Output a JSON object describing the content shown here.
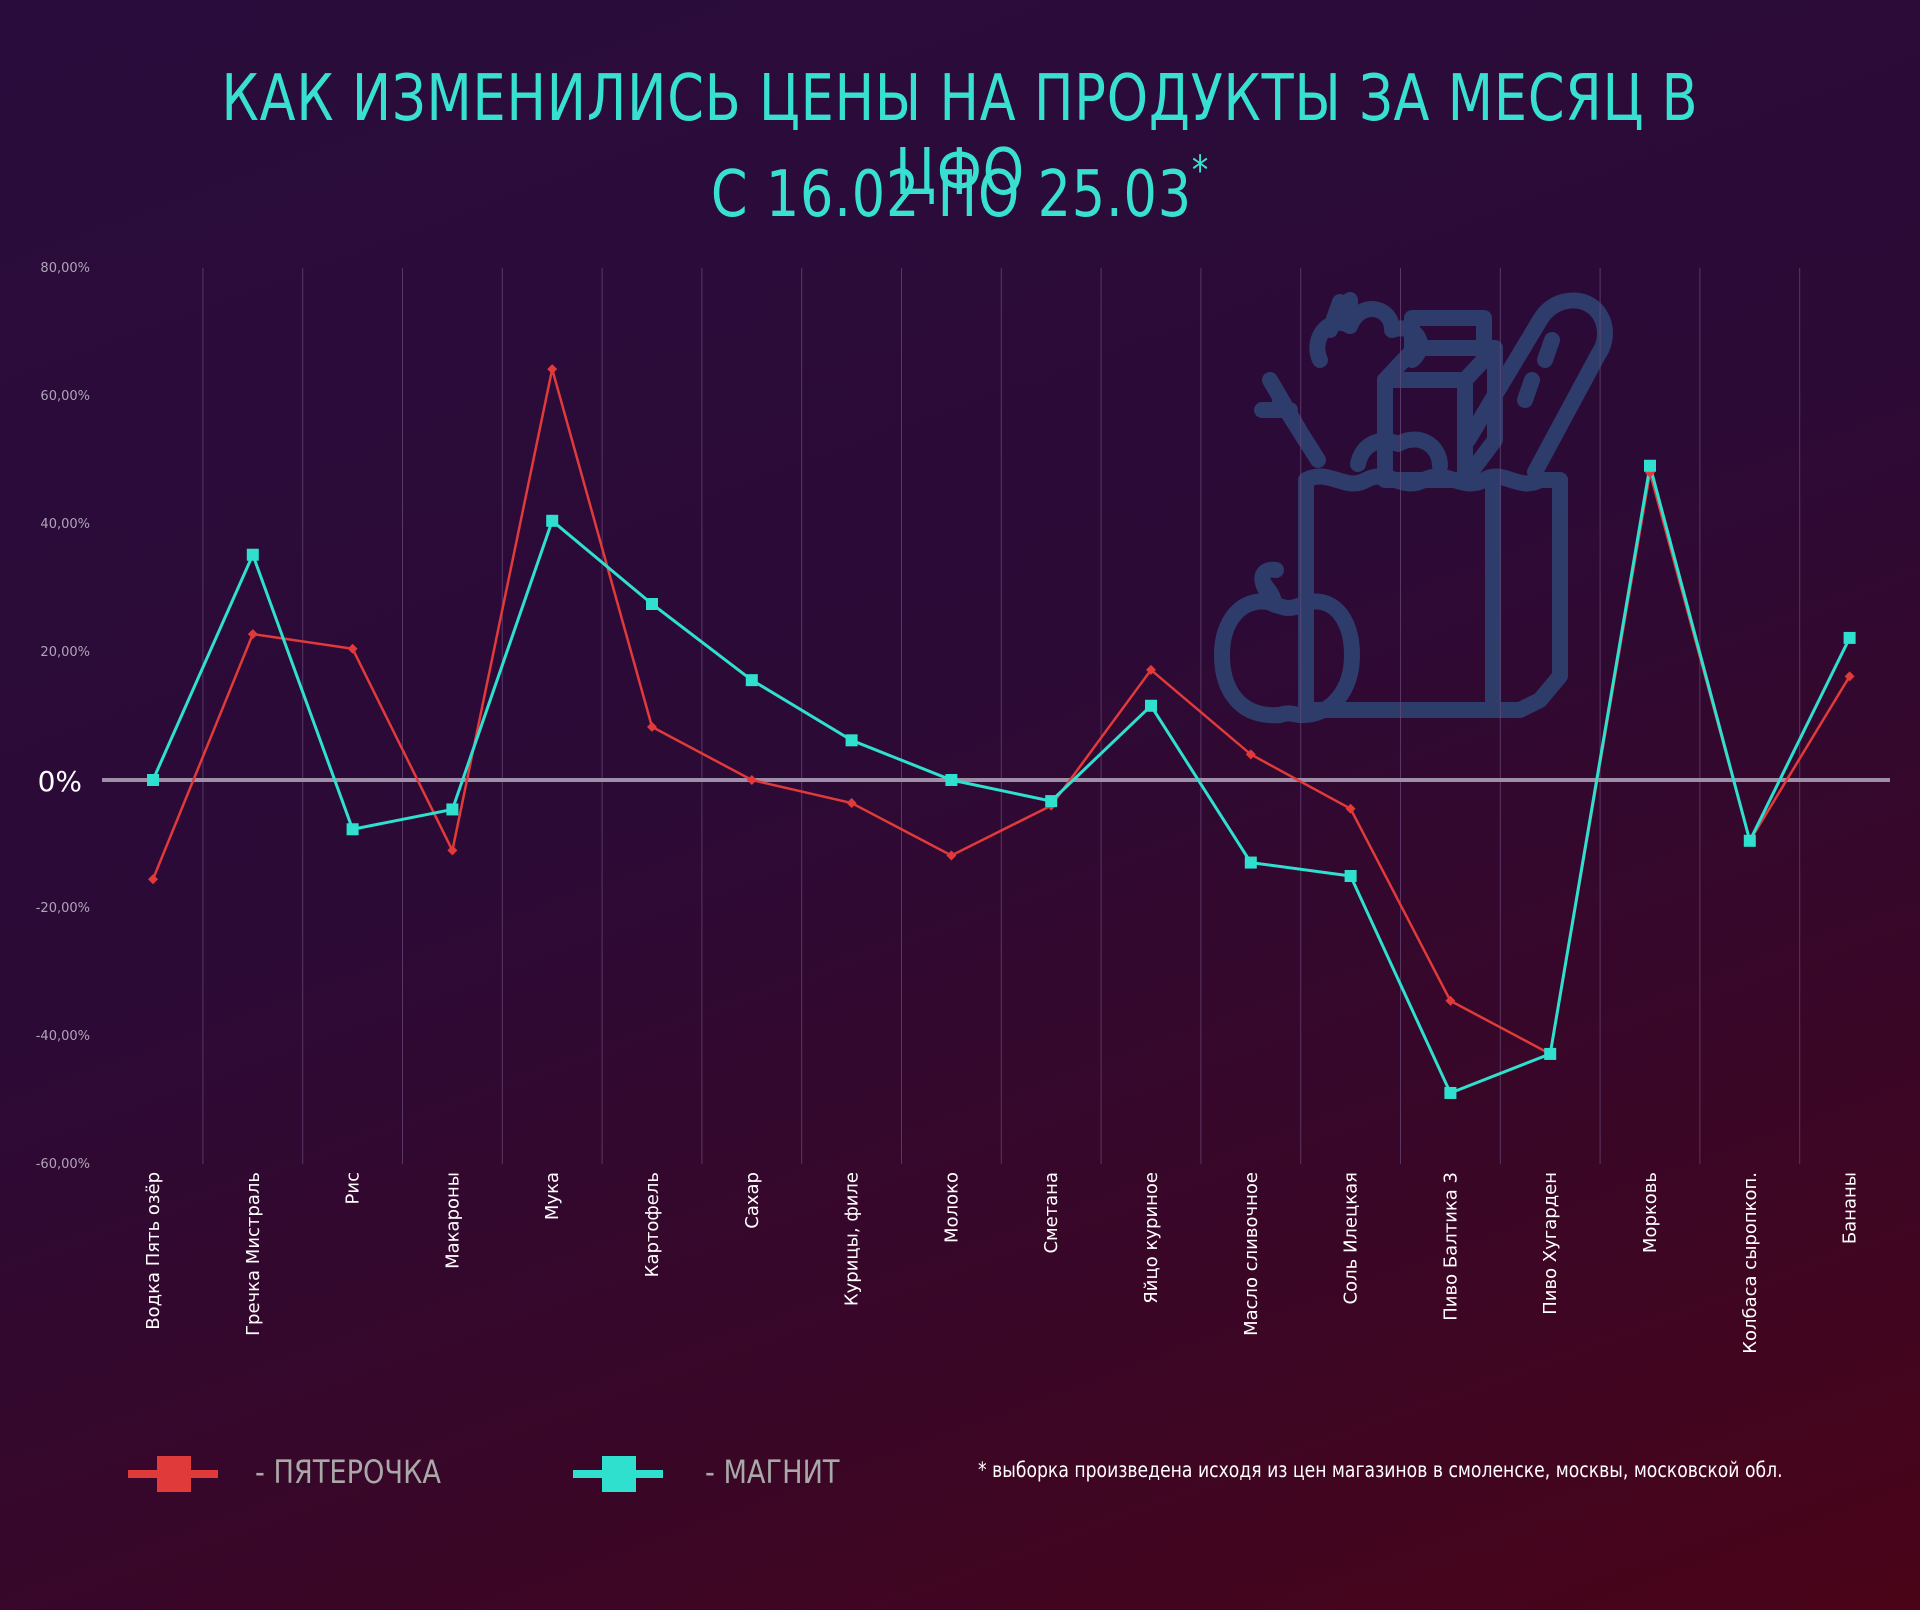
{
  "title": {
    "line1": "КАК ИЗМЕНИЛИСЬ ЦЕНЫ НА ПРОДУКТЫ ЗА МЕСЯЦ В ЦФО",
    "line2": "С 16.02 ПО 25.03",
    "mark": "*"
  },
  "zero_label": "0%",
  "footnote": "* выборка произведена исходя из цен магазинов в смоленске, москвы, московской обл.",
  "colors": {
    "pyaterochka": "#e03a3a",
    "magnit": "#2fe0cf",
    "title": "#37e0d0",
    "grid": "#6a4a7a",
    "zero_line": "#9e8ea8",
    "icon": "#2e3f6e"
  },
  "icon": "grocery-bag-icon",
  "chart_data": {
    "type": "line",
    "ylim": [
      -60,
      80
    ],
    "yticks": [
      "80,00%",
      "60,00%",
      "40,00%",
      "20,00%",
      "-20,00%",
      "-40,00%",
      "-60,00%"
    ],
    "ytick_values": [
      80,
      60,
      40,
      20,
      -20,
      -40,
      -60
    ],
    "categories": [
      "Водка Пять озёр",
      "Гречка Мистраль",
      "Рис",
      "Макароны",
      "Мука",
      "Картофель",
      "Сахар",
      "Курицы, филе",
      "Молоко",
      "Сметана",
      "Яйцо куриное",
      "Масло сливочное",
      "Соль Илецкая",
      "Пиво Балтика 3",
      "Пиво Хугарден",
      "Морковь",
      "Колбаса сыропкоп.",
      "Бананы"
    ],
    "series": [
      {
        "name": "- ПЯТЕРОЧКА",
        "values": [
          -15.5,
          22.8,
          20.5,
          -11,
          64.2,
          8.3,
          0,
          -3.6,
          -11.8,
          -4,
          17.2,
          4,
          -4.5,
          -34.5,
          -42.8,
          48,
          -9.5,
          16.2
        ]
      },
      {
        "name": "- МАГНИТ",
        "values": [
          0,
          35.2,
          -7.7,
          -4.6,
          40.5,
          27.5,
          15.6,
          6.2,
          0,
          -3.3,
          11.6,
          -12.9,
          -15,
          -48.9,
          -42.8,
          49.1,
          -9.5,
          22.2
        ]
      }
    ]
  }
}
